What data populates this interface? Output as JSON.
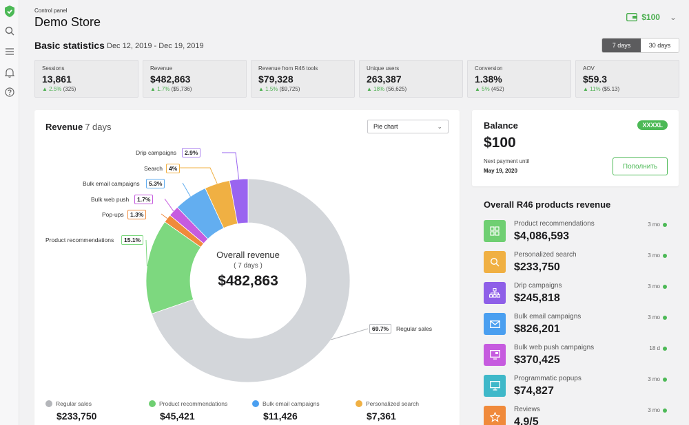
{
  "header": {
    "small_title": "Control panel",
    "store_name": "Demo Store",
    "wallet_balance": "$100"
  },
  "stats_header": {
    "title": "Basic statistics",
    "date_range": "Dec 12, 2019 - Dec 19, 2019",
    "period_options": [
      "7 days",
      "30 days"
    ],
    "selected_period": "7 days"
  },
  "stats": [
    {
      "label": "Sessions",
      "value": "13,861",
      "change": "2.5%",
      "delta": "(325)"
    },
    {
      "label": "Revenue",
      "value": "$482,863",
      "change": "1.7%",
      "delta": "($5,736)"
    },
    {
      "label": "Revenue from R46 tools",
      "value": "$79,328",
      "change": "1.5%",
      "delta": "($9,725)"
    },
    {
      "label": "Unique users",
      "value": "263,387",
      "change": "18%",
      "delta": "(56,625)"
    },
    {
      "label": "Conversion",
      "value": "1.38%",
      "change": "5%",
      "delta": "(452)"
    },
    {
      "label": "AOV",
      "value": "$59.3",
      "change": "11%",
      "delta": "($5.13)"
    }
  ],
  "revenue_panel": {
    "title": "Revenue",
    "subtitle": "7 days",
    "chart_type_select": "Pie chart",
    "center_title": "Overall revenue",
    "center_sub": "( 7 days )",
    "center_value": "$482,863"
  },
  "chart_data": {
    "type": "pie",
    "title": "Revenue 7 days",
    "slices": [
      {
        "label": "Regular sales",
        "value": 69.7,
        "color": "#d3d6da"
      },
      {
        "label": "Product recommendations",
        "value": 15.1,
        "color": "#7dd87f"
      },
      {
        "label": "Pop-ups",
        "value": 1.3,
        "color": "#f08a3b"
      },
      {
        "label": "Bulk web push",
        "value": 1.7,
        "color": "#c65bdf"
      },
      {
        "label": "Bulk email campaigns",
        "value": 5.3,
        "color": "#63aef0"
      },
      {
        "label": "Search",
        "value": 4,
        "color": "#f0b043"
      },
      {
        "label": "Drip campaigns",
        "value": 2.9,
        "color": "#9a64f0"
      }
    ],
    "slice_labels_pct": [
      "69.7%",
      "15.1%",
      "1.3%",
      "1.7%",
      "5.3%",
      "4%",
      "2.9%"
    ]
  },
  "legend": [
    {
      "label": "Regular sales",
      "value": "$233,750",
      "color": "#b4b6ba"
    },
    {
      "label": "Product recommendations",
      "value": "$45,421",
      "color": "#6fcf72"
    },
    {
      "label": "Bulk email campaigns",
      "value": "$11,426",
      "color": "#4a9ff0"
    },
    {
      "label": "Personalized search",
      "value": "$7,361",
      "color": "#f0b043"
    }
  ],
  "balance": {
    "title": "Balance",
    "plan_badge": "XXXXL",
    "amount": "$100",
    "next_payment_label": "Next payment until",
    "next_payment_date": "May 19, 2020",
    "topup_button": "Пополнить"
  },
  "products": {
    "title": "Overall R46 products revenue",
    "items": [
      {
        "name": "Product recommendations",
        "value": "$4,086,593",
        "time": "3 mo",
        "icon": "grid-icon",
        "color": "#6fcf72"
      },
      {
        "name": "Personalized search",
        "value": "$233,750",
        "time": "3 mo",
        "icon": "search-icon",
        "color": "#f0b043"
      },
      {
        "name": "Drip campaigns",
        "value": "$245,818",
        "time": "3 mo",
        "icon": "hierarchy-icon",
        "color": "#8e5fe8"
      },
      {
        "name": "Bulk email campaigns",
        "value": "$826,201",
        "time": "3 mo",
        "icon": "mail-icon",
        "color": "#4a9ff0"
      },
      {
        "name": "Bulk web push campaigns",
        "value": "$370,425",
        "time": "18 d",
        "icon": "push-icon",
        "color": "#c65bdf"
      },
      {
        "name": "Programmatic popups",
        "value": "$74,827",
        "time": "3 mo",
        "icon": "monitor-icon",
        "color": "#3fb8c9"
      },
      {
        "name": "Reviews",
        "value": "4.9/5",
        "time": "3 mo",
        "icon": "star-icon",
        "color": "#f08a3b"
      }
    ]
  }
}
